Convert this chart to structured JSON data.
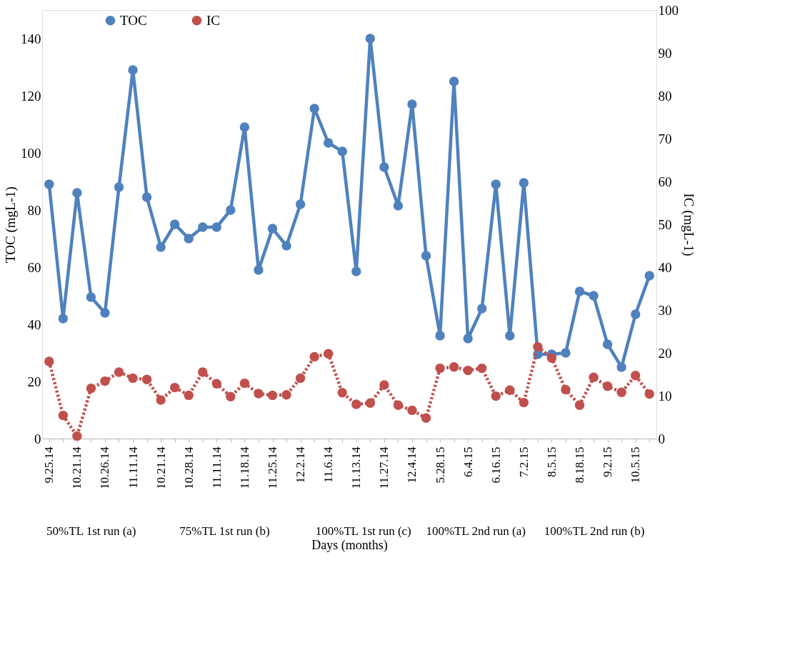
{
  "chart_data": {
    "type": "line",
    "xlabel": "Days (months)",
    "ylabel": "TOC (mgL-1)",
    "y2label": "IC (mgL-1)",
    "categories": [
      "9.25.14",
      null,
      "10.21.14",
      null,
      "10.26.14",
      null,
      "11.11.14",
      null,
      "10.21.14",
      null,
      "10.28.14",
      null,
      "11.11.14",
      null,
      "11.18.14",
      null,
      "11.25.14",
      null,
      "12.2.14",
      null,
      "11.6.14",
      null,
      "11.13.14",
      null,
      "11.27.14",
      null,
      "12.4.14",
      null,
      "5.28.15",
      null,
      "6.4.15",
      null,
      "6.16.15",
      null,
      "7.2.15",
      null,
      "8.5.15",
      null,
      "8.18.15",
      null,
      "9.2.15",
      null,
      "10.5.15",
      null
    ],
    "series": [
      {
        "name": "TOC",
        "color": "#4f81bd",
        "line_style": "solid",
        "values": [
          89,
          42,
          86,
          49.5,
          44,
          88,
          129,
          84.5,
          67,
          75,
          70,
          74,
          74,
          80,
          109,
          59,
          73.5,
          67.5,
          82,
          115.5,
          103.5,
          100.5,
          58.5,
          140,
          95,
          81.5,
          117,
          64,
          36,
          125,
          35,
          45.5,
          89,
          36,
          89.5,
          29.5,
          29.5,
          30,
          51.5,
          50,
          33,
          25,
          43.5,
          57
        ]
      },
      {
        "name": "IC",
        "color": "#c0504d",
        "line_style": "dotted",
        "axis": "y2",
        "values": [
          18,
          5.4,
          0.6,
          11.7,
          13.4,
          15.5,
          14.1,
          13.8,
          9,
          11.9,
          10.1,
          15.5,
          12.8,
          9.8,
          12.9,
          10.5,
          10.1,
          10.2,
          14.1,
          19.1,
          19.8,
          10.7,
          8,
          8.3,
          12.5,
          7.8,
          6.6,
          4.8,
          16.4,
          16.7,
          15.9,
          16.4,
          9.9,
          11.3,
          8.4,
          21.4,
          18.8,
          11.4,
          7.8,
          14.3,
          12.2,
          10.8,
          14.7,
          10.4
        ]
      }
    ],
    "ylim": [
      0,
      150
    ],
    "yticks": [
      0,
      20,
      40,
      60,
      80,
      100,
      120,
      140
    ],
    "y2lim": [
      0,
      100
    ],
    "y2ticks": [
      0,
      10,
      20,
      30,
      40,
      50,
      60,
      70,
      80,
      90,
      100
    ],
    "marker": "circle",
    "legend": "top",
    "annotations": [
      "50%TL 1st run (a)",
      "75%TL 1st run (b)",
      "100%TL 1st run (c)",
      "100%TL 2nd run (a)",
      "100%TL 2nd run (b)"
    ]
  }
}
